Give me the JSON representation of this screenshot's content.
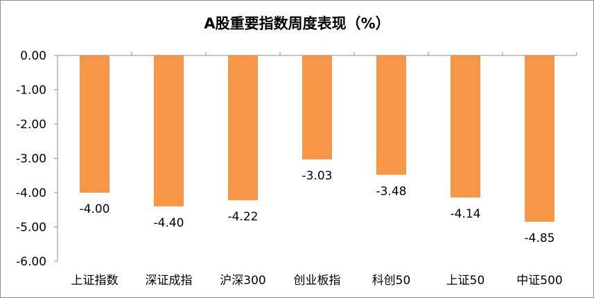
{
  "chart_data": {
    "type": "bar",
    "title": "A股重要指数周度表现（%）",
    "categories": [
      "上证指数",
      "深证成指",
      "沪深300",
      "创业板指",
      "科创50",
      "上证50",
      "中证500"
    ],
    "values": [
      -4.0,
      -4.4,
      -4.22,
      -3.03,
      -3.48,
      -4.14,
      -4.85
    ],
    "value_labels": [
      "-4.00",
      "-4.40",
      "-4.22",
      "-3.03",
      "-3.48",
      "-4.14",
      "-4.85"
    ],
    "ylim": [
      -6,
      0
    ],
    "yticks": [
      "0.00",
      "-1.00",
      "-2.00",
      "-3.00",
      "-4.00",
      "-5.00",
      "-6.00"
    ],
    "grid": false,
    "legend": "none",
    "bar_color": "#F79646"
  }
}
